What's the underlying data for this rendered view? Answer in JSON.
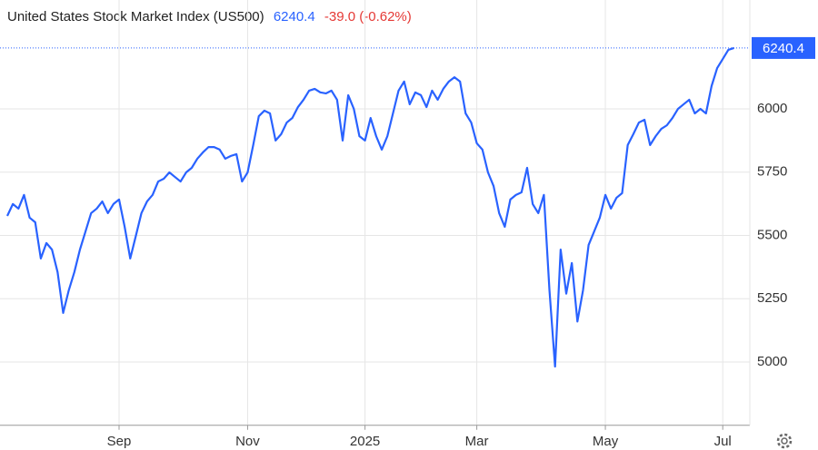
{
  "chart_data": {
    "type": "line",
    "title": "United States Stock Market Index (US500)",
    "change_label": "-39.0 (-0.62%)",
    "categories": [
      null,
      null,
      null,
      null,
      null,
      null,
      null,
      null,
      null,
      null,
      null,
      null,
      null,
      null,
      null,
      null,
      null,
      null,
      null,
      null,
      "Sep",
      null,
      null,
      null,
      null,
      null,
      null,
      null,
      null,
      null,
      null,
      null,
      null,
      null,
      null,
      null,
      null,
      null,
      null,
      null,
      null,
      null,
      null,
      "Nov",
      null,
      null,
      null,
      null,
      null,
      null,
      null,
      null,
      null,
      null,
      null,
      null,
      null,
      null,
      null,
      null,
      null,
      null,
      null,
      null,
      "2025",
      null,
      null,
      null,
      null,
      null,
      null,
      null,
      null,
      null,
      null,
      null,
      null,
      null,
      null,
      null,
      null,
      null,
      null,
      null,
      "Mar",
      null,
      null,
      null,
      null,
      null,
      null,
      null,
      null,
      null,
      null,
      null,
      null,
      null,
      null,
      null,
      null,
      null,
      null,
      null,
      null,
      null,
      null,
      "May",
      null,
      null,
      null,
      null,
      null,
      null,
      null,
      null,
      null,
      null,
      null,
      null,
      null,
      null,
      null,
      null,
      null,
      null,
      null,
      null,
      "Jul",
      null,
      null
    ],
    "series": [
      {
        "name": "US500",
        "color": "#2962ff",
        "values": [
          5577,
          5624,
          5606,
          5660,
          5570,
          5552,
          5409,
          5470,
          5444,
          5355,
          5194,
          5283,
          5355,
          5444,
          5516,
          5588,
          5606,
          5634,
          5588,
          5624,
          5642,
          5534,
          5409,
          5498,
          5588,
          5634,
          5660,
          5713,
          5724,
          5749,
          5731,
          5713,
          5749,
          5767,
          5803,
          5828,
          5849,
          5849,
          5839,
          5803,
          5814,
          5821,
          5713,
          5749,
          5857,
          5971,
          5993,
          5982,
          5875,
          5900,
          5946,
          5964,
          6007,
          6036,
          6072,
          6079,
          6065,
          6061,
          6072,
          6036,
          5875,
          6054,
          6000,
          5892,
          5875,
          5964,
          5892,
          5839,
          5892,
          5982,
          6072,
          6108,
          6018,
          6065,
          6054,
          6007,
          6072,
          6036,
          6079,
          6108,
          6125,
          6108,
          5982,
          5946,
          5864,
          5839,
          5749,
          5695,
          5588,
          5534,
          5642,
          5660,
          5670,
          5767,
          5624,
          5588,
          5660,
          5283,
          4982,
          5444,
          5270,
          5391,
          5160,
          5283,
          5462,
          5516,
          5570,
          5660,
          5606,
          5649,
          5667,
          5857,
          5900,
          5946,
          5957,
          5857,
          5892,
          5921,
          5935,
          5964,
          6000,
          6018,
          6036,
          5982,
          6000,
          5982,
          6090,
          6161,
          6197,
          6233,
          6240.4
        ]
      }
    ],
    "ylim": [
      4750,
      6320
    ],
    "yticks": [
      5000,
      5250,
      5500,
      5750,
      6000
    ],
    "grid": true
  }
}
